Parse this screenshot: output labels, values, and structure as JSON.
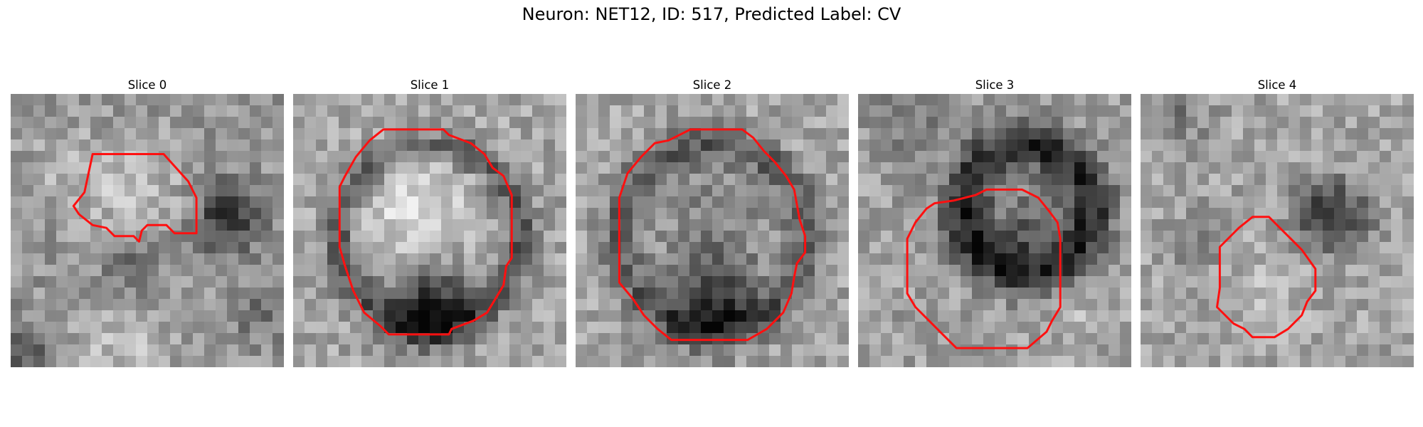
{
  "figure": {
    "title": "Neuron: NET12, ID: 517, Predicted Label: CV"
  },
  "colors": {
    "contour": "#ff1010",
    "background": "#ffffff"
  },
  "panels": [
    {
      "title": "Slice 0"
    },
    {
      "title": "Slice 1"
    },
    {
      "title": "Slice 2"
    },
    {
      "title": "Slice 3"
    },
    {
      "title": "Slice 4"
    }
  ]
}
